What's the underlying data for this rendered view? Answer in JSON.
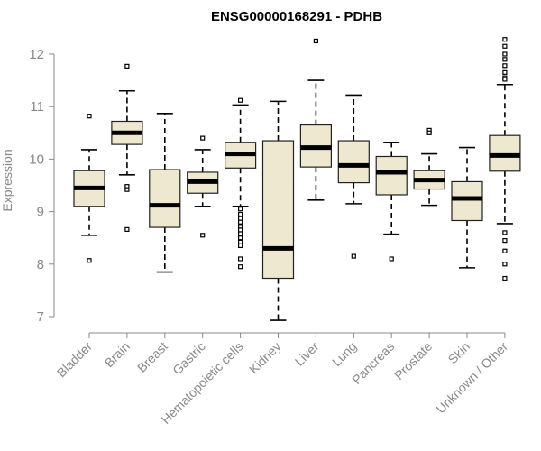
{
  "chart_data": {
    "type": "boxplot",
    "title": "ENSG00000168291 - PDHB",
    "ylabel": "Expression",
    "xlabel": "",
    "ylim": [
      6.9,
      12.4
    ],
    "yticks": [
      7,
      8,
      9,
      10,
      11,
      12
    ],
    "box_color": "#efe8d0",
    "categories": [
      "Bladder",
      "Brain",
      "Breast",
      "Gastric",
      "Hematopoietic cells",
      "Kidney",
      "Liver",
      "Lung",
      "Pancreas",
      "Prostate",
      "Skin",
      "Unknown / Other"
    ],
    "series": [
      {
        "name": "Bladder",
        "min": 8.55,
        "q1": 9.1,
        "median": 9.45,
        "q3": 9.78,
        "max": 10.18,
        "outliers": [
          10.82,
          8.07
        ]
      },
      {
        "name": "Brain",
        "min": 9.7,
        "q1": 10.28,
        "median": 10.5,
        "q3": 10.72,
        "max": 11.3,
        "outliers": [
          11.77,
          9.48,
          9.42,
          8.66
        ]
      },
      {
        "name": "Breast",
        "min": 7.85,
        "q1": 8.7,
        "median": 9.12,
        "q3": 9.8,
        "max": 10.87,
        "outliers": []
      },
      {
        "name": "Gastric",
        "min": 9.1,
        "q1": 9.35,
        "median": 9.57,
        "q3": 9.75,
        "max": 10.18,
        "outliers": [
          10.4,
          8.55
        ]
      },
      {
        "name": "Hematopoietic cells",
        "min": 9.1,
        "q1": 9.83,
        "median": 10.1,
        "q3": 10.32,
        "max": 11.03,
        "outliers": [
          11.12,
          9.05,
          8.95,
          8.87,
          8.8,
          8.72,
          8.65,
          8.58,
          8.5,
          8.42,
          8.35,
          8.1,
          7.95
        ]
      },
      {
        "name": "Kidney",
        "min": 6.93,
        "q1": 7.73,
        "median": 8.3,
        "q3": 10.35,
        "max": 11.1,
        "outliers": []
      },
      {
        "name": "Liver",
        "min": 9.22,
        "q1": 9.85,
        "median": 10.22,
        "q3": 10.65,
        "max": 11.5,
        "outliers": [
          12.25
        ]
      },
      {
        "name": "Lung",
        "min": 9.15,
        "q1": 9.55,
        "median": 9.88,
        "q3": 10.35,
        "max": 11.22,
        "outliers": [
          8.15
        ]
      },
      {
        "name": "Pancreas",
        "min": 8.57,
        "q1": 9.32,
        "median": 9.75,
        "q3": 10.05,
        "max": 10.32,
        "outliers": [
          8.1
        ]
      },
      {
        "name": "Prostate",
        "min": 9.12,
        "q1": 9.43,
        "median": 9.6,
        "q3": 9.78,
        "max": 10.1,
        "outliers": [
          10.55,
          10.5
        ]
      },
      {
        "name": "Skin",
        "min": 7.93,
        "q1": 8.83,
        "median": 9.25,
        "q3": 9.57,
        "max": 10.22,
        "outliers": []
      },
      {
        "name": "Unknown / Other",
        "min": 8.77,
        "q1": 9.77,
        "median": 10.07,
        "q3": 10.45,
        "max": 11.42,
        "outliers": [
          12.28,
          12.15,
          12.0,
          11.9,
          11.78,
          11.65,
          11.55,
          11.52,
          8.6,
          8.45,
          8.25,
          8.0,
          7.73
        ]
      }
    ]
  }
}
